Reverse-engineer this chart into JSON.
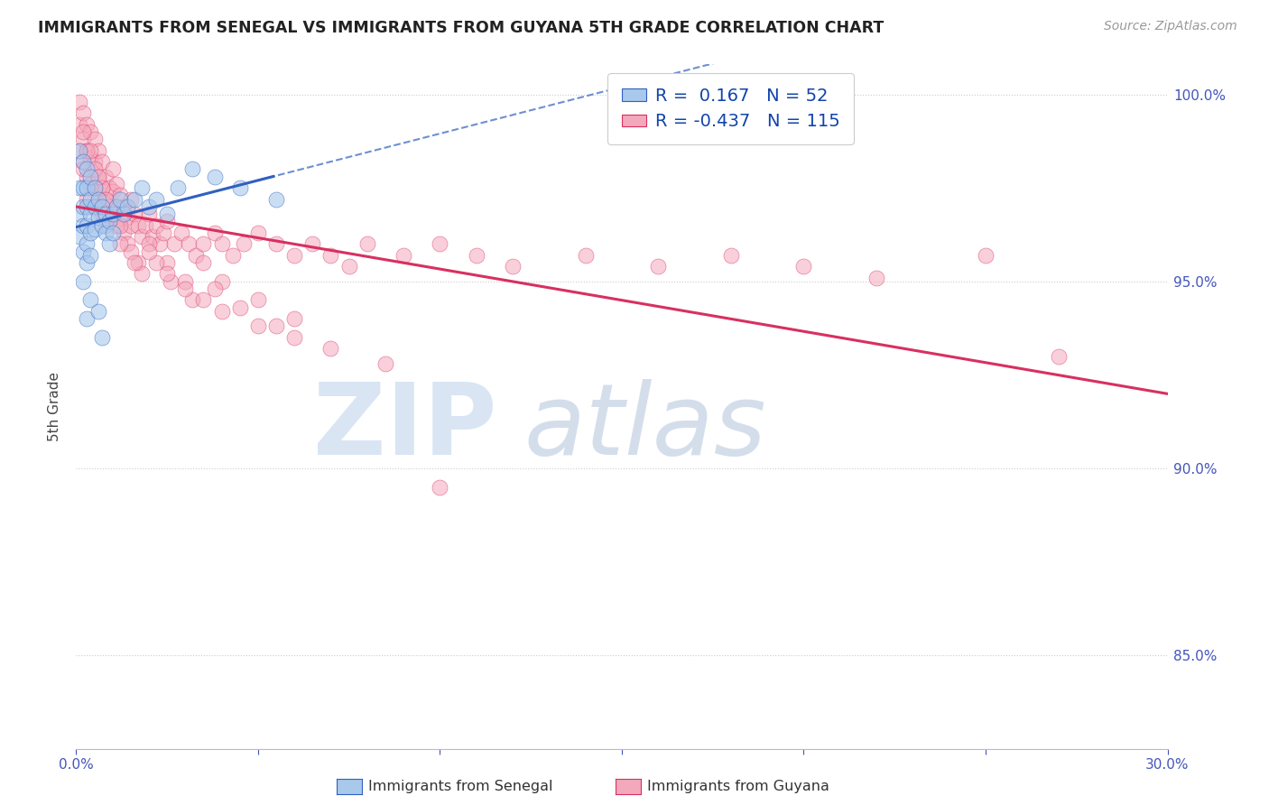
{
  "title": "IMMIGRANTS FROM SENEGAL VS IMMIGRANTS FROM GUYANA 5TH GRADE CORRELATION CHART",
  "source": "Source: ZipAtlas.com",
  "ylabel": "5th Grade",
  "legend_label1": "Immigrants from Senegal",
  "legend_label2": "Immigrants from Guyana",
  "r1": 0.167,
  "n1": 52,
  "r2": -0.437,
  "n2": 115,
  "color1": "#A8C8EC",
  "color2": "#F4A8BC",
  "trendline1_color": "#3060C0",
  "trendline2_color": "#D83060",
  "xmin": 0.0,
  "xmax": 0.3,
  "ymin": 0.825,
  "ymax": 1.008,
  "yticks": [
    0.85,
    0.9,
    0.95,
    1.0
  ],
  "ytick_labels": [
    "85.0%",
    "90.0%",
    "95.0%",
    "100.0%"
  ],
  "xticks": [
    0.0,
    0.05,
    0.1,
    0.15,
    0.2,
    0.25,
    0.3
  ],
  "xtick_labels": [
    "0.0%",
    "",
    "",
    "",
    "",
    "",
    "30.0%"
  ],
  "senegal_x": [
    0.001,
    0.001,
    0.001,
    0.001,
    0.002,
    0.002,
    0.002,
    0.002,
    0.002,
    0.003,
    0.003,
    0.003,
    0.003,
    0.003,
    0.003,
    0.004,
    0.004,
    0.004,
    0.004,
    0.004,
    0.005,
    0.005,
    0.005,
    0.006,
    0.006,
    0.007,
    0.007,
    0.008,
    0.008,
    0.009,
    0.009,
    0.01,
    0.01,
    0.011,
    0.012,
    0.013,
    0.014,
    0.016,
    0.018,
    0.02,
    0.022,
    0.025,
    0.028,
    0.032,
    0.038,
    0.045,
    0.055,
    0.007,
    0.003,
    0.004,
    0.006,
    0.002
  ],
  "senegal_y": [
    0.985,
    0.975,
    0.968,
    0.962,
    0.982,
    0.975,
    0.97,
    0.965,
    0.958,
    0.98,
    0.975,
    0.97,
    0.965,
    0.96,
    0.955,
    0.978,
    0.972,
    0.968,
    0.963,
    0.957,
    0.975,
    0.97,
    0.964,
    0.972,
    0.967,
    0.97,
    0.965,
    0.968,
    0.963,
    0.966,
    0.96,
    0.968,
    0.963,
    0.97,
    0.972,
    0.968,
    0.97,
    0.972,
    0.975,
    0.97,
    0.972,
    0.968,
    0.975,
    0.98,
    0.978,
    0.975,
    0.972,
    0.935,
    0.94,
    0.945,
    0.942,
    0.95
  ],
  "guyana_x": [
    0.001,
    0.001,
    0.001,
    0.002,
    0.002,
    0.002,
    0.003,
    0.003,
    0.003,
    0.003,
    0.004,
    0.004,
    0.004,
    0.004,
    0.005,
    0.005,
    0.005,
    0.006,
    0.006,
    0.006,
    0.007,
    0.007,
    0.007,
    0.008,
    0.008,
    0.009,
    0.009,
    0.01,
    0.01,
    0.01,
    0.011,
    0.011,
    0.012,
    0.012,
    0.013,
    0.013,
    0.014,
    0.015,
    0.015,
    0.016,
    0.017,
    0.018,
    0.019,
    0.02,
    0.021,
    0.022,
    0.023,
    0.024,
    0.025,
    0.027,
    0.029,
    0.031,
    0.033,
    0.035,
    0.038,
    0.04,
    0.043,
    0.046,
    0.05,
    0.055,
    0.06,
    0.065,
    0.07,
    0.075,
    0.08,
    0.09,
    0.1,
    0.11,
    0.12,
    0.14,
    0.16,
    0.18,
    0.2,
    0.22,
    0.25,
    0.27,
    0.003,
    0.005,
    0.007,
    0.009,
    0.011,
    0.014,
    0.017,
    0.02,
    0.025,
    0.03,
    0.035,
    0.04,
    0.05,
    0.06,
    0.002,
    0.004,
    0.006,
    0.008,
    0.012,
    0.015,
    0.018,
    0.022,
    0.026,
    0.032,
    0.038,
    0.045,
    0.055,
    0.002,
    0.004,
    0.006,
    0.008,
    0.012,
    0.016,
    0.02,
    0.025,
    0.03,
    0.035,
    0.04,
    0.05,
    0.06,
    0.07,
    0.085,
    0.1
  ],
  "guyana_y": [
    0.998,
    0.992,
    0.985,
    0.995,
    0.988,
    0.982,
    0.992,
    0.985,
    0.978,
    0.972,
    0.99,
    0.983,
    0.976,
    0.97,
    0.988,
    0.982,
    0.975,
    0.985,
    0.978,
    0.972,
    0.982,
    0.975,
    0.968,
    0.978,
    0.972,
    0.975,
    0.968,
    0.98,
    0.974,
    0.967,
    0.976,
    0.97,
    0.973,
    0.967,
    0.97,
    0.963,
    0.967,
    0.972,
    0.965,
    0.968,
    0.965,
    0.962,
    0.965,
    0.968,
    0.962,
    0.965,
    0.96,
    0.963,
    0.966,
    0.96,
    0.963,
    0.96,
    0.957,
    0.96,
    0.963,
    0.96,
    0.957,
    0.96,
    0.963,
    0.96,
    0.957,
    0.96,
    0.957,
    0.954,
    0.96,
    0.957,
    0.96,
    0.957,
    0.954,
    0.957,
    0.954,
    0.957,
    0.954,
    0.951,
    0.957,
    0.93,
    0.985,
    0.98,
    0.975,
    0.97,
    0.965,
    0.96,
    0.955,
    0.96,
    0.955,
    0.95,
    0.955,
    0.95,
    0.945,
    0.94,
    0.99,
    0.985,
    0.978,
    0.972,
    0.965,
    0.958,
    0.952,
    0.955,
    0.95,
    0.945,
    0.948,
    0.943,
    0.938,
    0.98,
    0.975,
    0.97,
    0.965,
    0.96,
    0.955,
    0.958,
    0.952,
    0.948,
    0.945,
    0.942,
    0.938,
    0.935,
    0.932,
    0.928,
    0.895
  ]
}
